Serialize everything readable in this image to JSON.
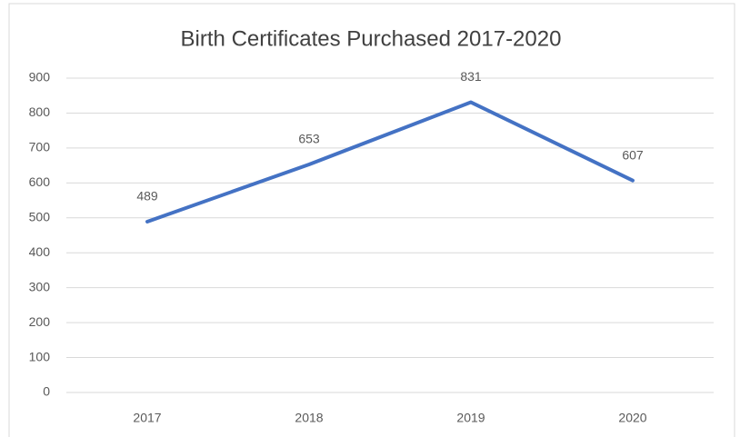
{
  "chart_data": {
    "type": "line",
    "title": "Birth Certificates Purchased 2017-2020",
    "categories": [
      "2017",
      "2018",
      "2019",
      "2020"
    ],
    "values": [
      489,
      653,
      831,
      607
    ],
    "color": "#4472c4",
    "ylim": [
      0,
      900
    ],
    "yticks": [
      0,
      100,
      200,
      300,
      400,
      500,
      600,
      700,
      800,
      900
    ],
    "grid": true,
    "data_labels": true
  }
}
